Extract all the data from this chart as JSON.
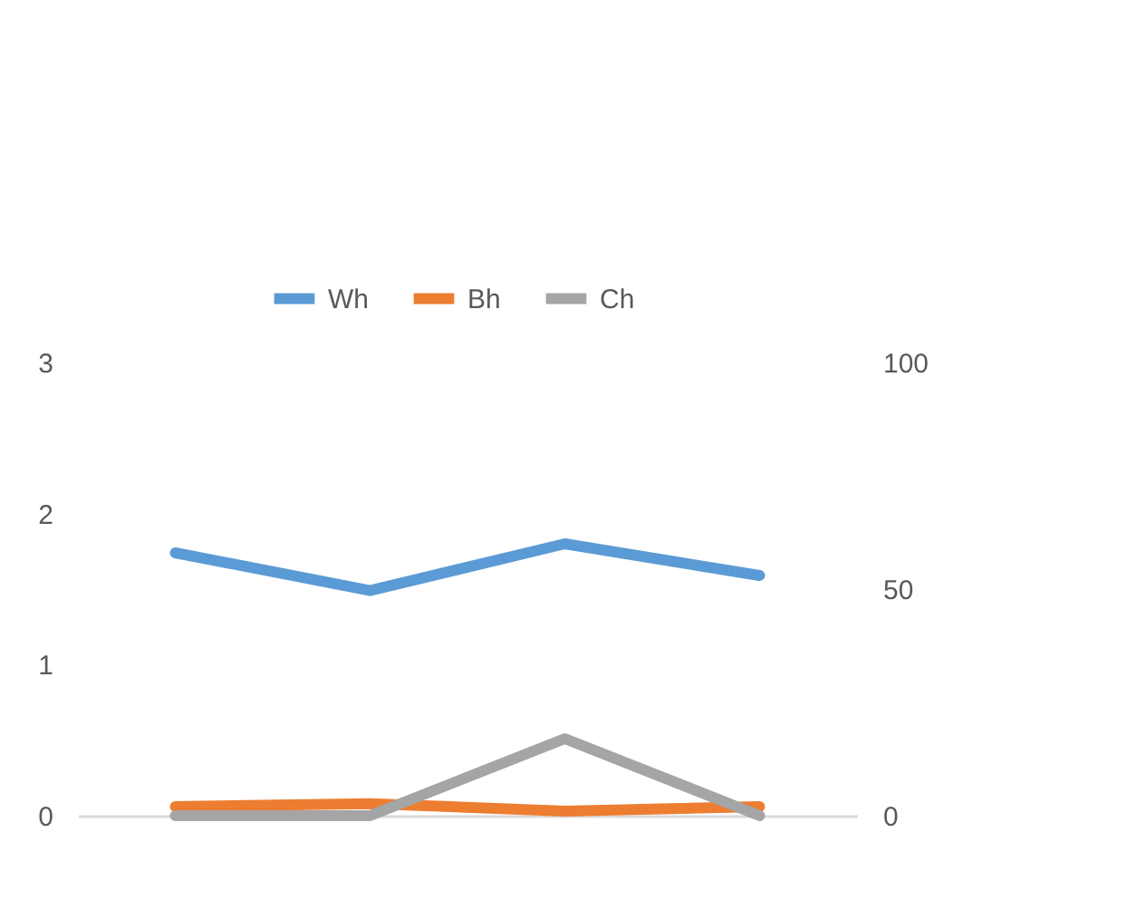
{
  "chart_data": {
    "type": "line",
    "categories": [
      null,
      null,
      null,
      null
    ],
    "series": [
      {
        "name": "Wh",
        "color": "#5b9bd5",
        "values": [
          1.74,
          1.49,
          1.8,
          1.59
        ]
      },
      {
        "name": "Bh",
        "color": "#ed7d31",
        "values": [
          0.06,
          0.08,
          0.03,
          0.06
        ]
      },
      {
        "name": "Ch",
        "color": "#a5a5a5",
        "values": [
          0,
          0,
          17,
          0
        ],
        "axis": "y2"
      }
    ],
    "ylim": [
      0,
      3
    ],
    "yticks": [
      0,
      1,
      2,
      3
    ],
    "y2lim": [
      0,
      100
    ],
    "y2ticks": [
      0,
      50,
      100
    ],
    "grid": false,
    "legend": "top",
    "marker": "none",
    "line_style": "solid"
  }
}
